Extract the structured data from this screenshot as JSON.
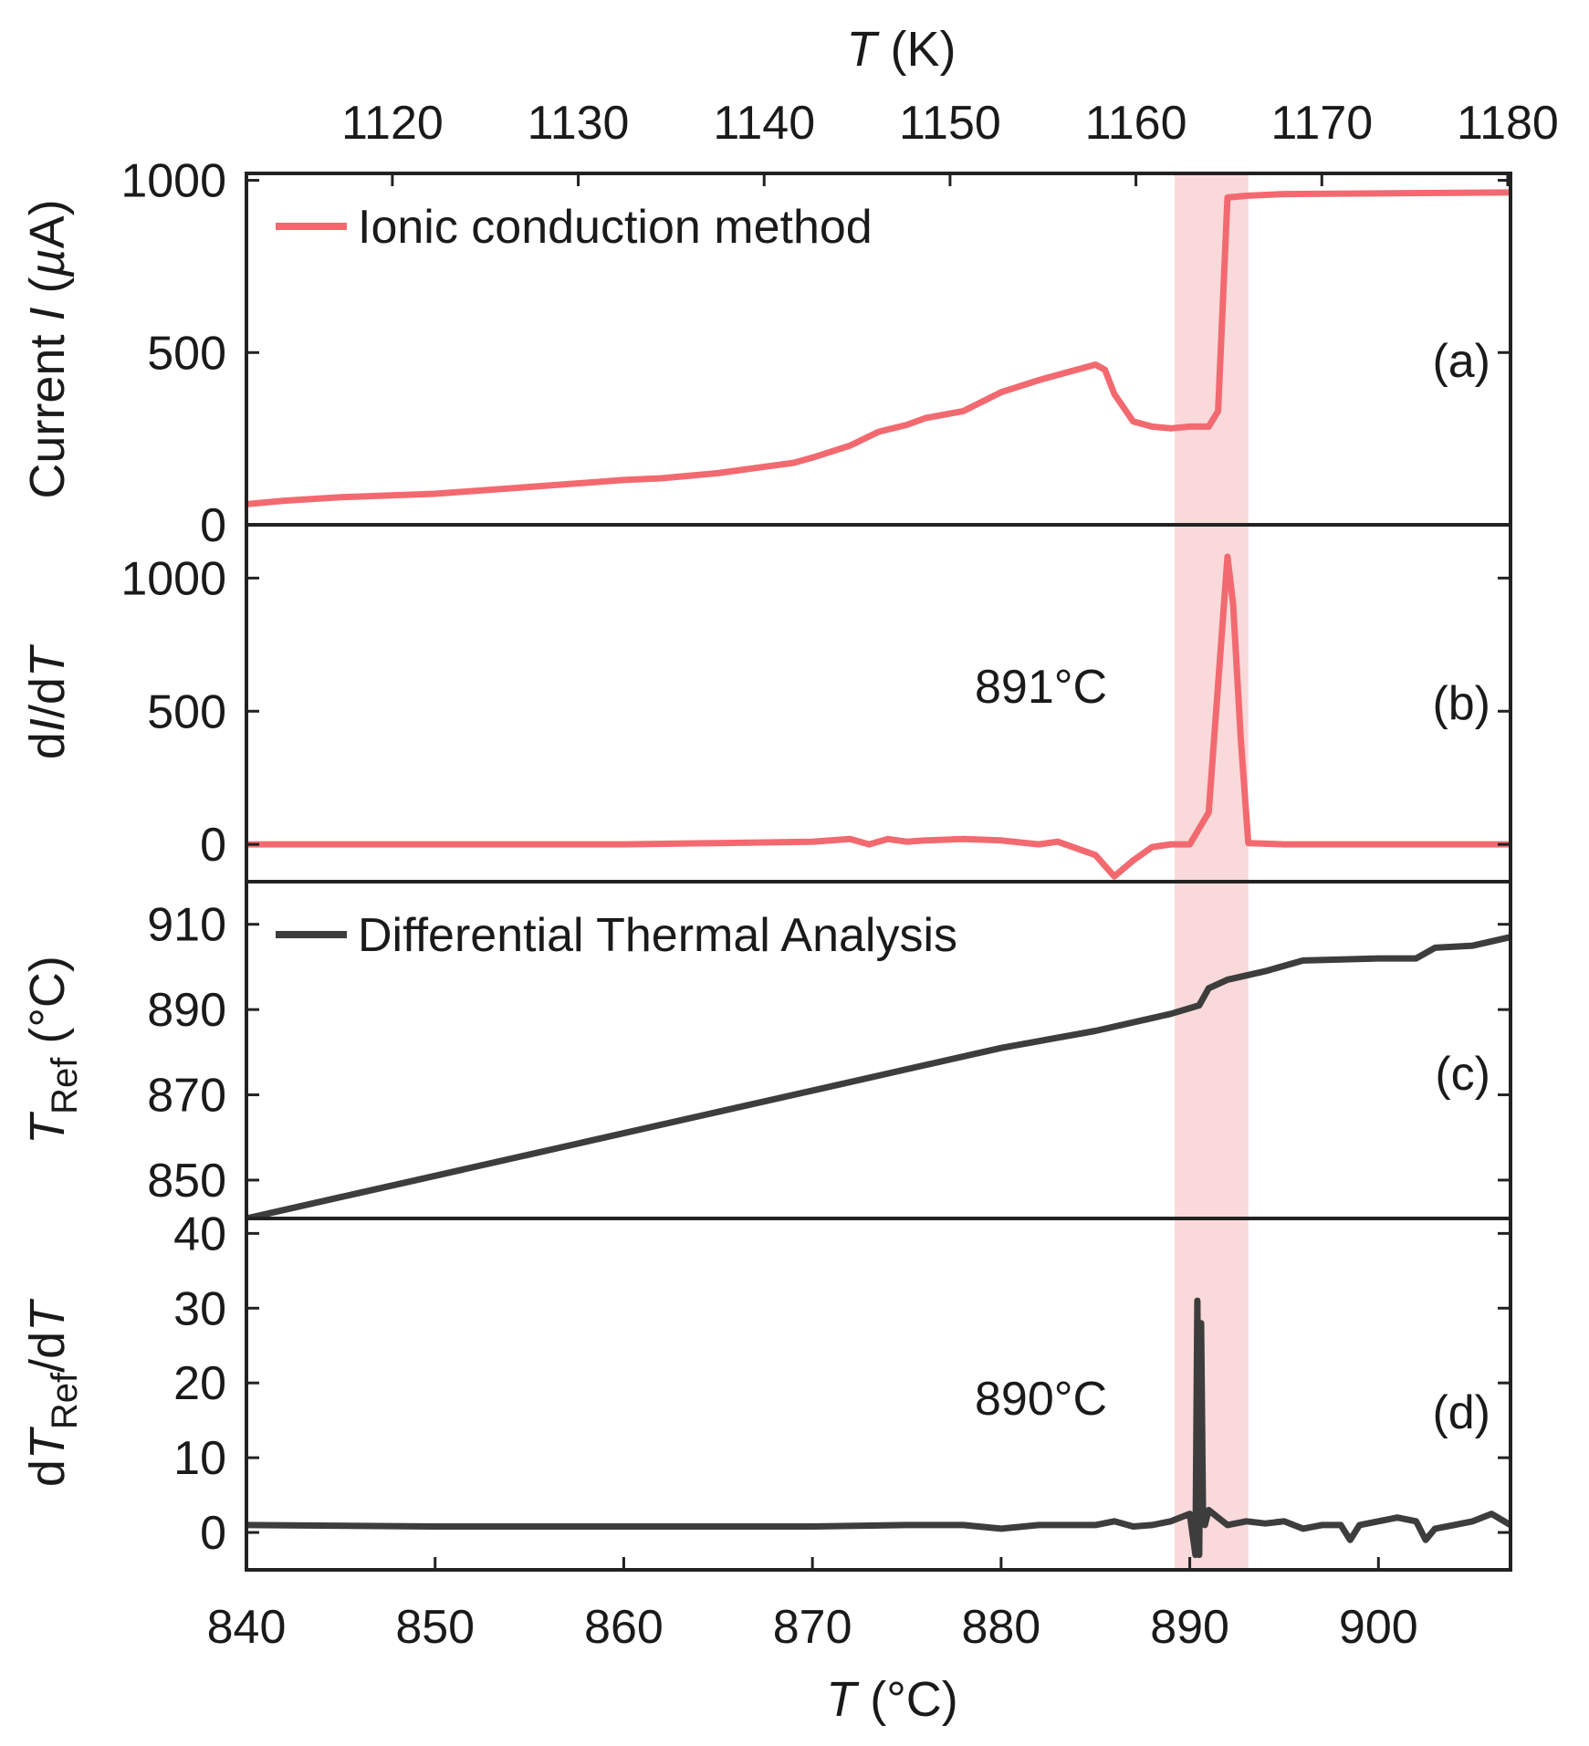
{
  "chart_data": {
    "type": "line",
    "figure": {
      "top_axis": {
        "title_italic": "T",
        "title_rest": " (K)",
        "range": [
          1112.15,
          1180.15
        ],
        "ticks": [
          1120,
          1130,
          1140,
          1150,
          1160,
          1170,
          1180
        ]
      },
      "bottom_axis": {
        "title_italic": "T",
        "title_rest": " (°C)",
        "range": [
          840,
          907
        ],
        "ticks": [
          840,
          850,
          860,
          870,
          880,
          890,
          900
        ]
      },
      "highlight_band": {
        "x0": 889.2,
        "x1": 893.1,
        "color": "#f9d9d9"
      }
    },
    "panels": [
      {
        "id": "a",
        "label": "(a)",
        "color": "#f26a70",
        "ylabel": "Current I (µA)",
        "ylabel_parts": {
          "pre": "Current ",
          "italic": "I",
          "post": " (",
          "greek": "µ",
          "unit": "A)"
        },
        "ylim": [
          0,
          1020
        ],
        "ticks": [
          0,
          500,
          1000
        ],
        "legend": "Ionic conduction method",
        "series": {
          "x": [
            840,
            842,
            845,
            850,
            855,
            860,
            862,
            865,
            867,
            869,
            870,
            872,
            873.5,
            875,
            876,
            878,
            880,
            882,
            884,
            885,
            885.5,
            886,
            887,
            888,
            889,
            890,
            891,
            891.5,
            892,
            893,
            895,
            900,
            907
          ],
          "y": [
            60,
            70,
            80,
            90,
            110,
            130,
            135,
            150,
            165,
            180,
            195,
            230,
            270,
            290,
            310,
            330,
            385,
            420,
            450,
            465,
            450,
            380,
            300,
            285,
            280,
            285,
            285,
            330,
            950,
            955,
            960,
            962,
            965
          ]
        }
      },
      {
        "id": "b",
        "label": "(b)",
        "color": "#f26a70",
        "ylabel": "dI/dT",
        "ylabel_parts": {
          "pre": "d",
          "italic": "I",
          "post": "/d",
          "italic2": "T"
        },
        "ylim": [
          -140,
          1200
        ],
        "ticks": [
          0,
          500,
          1000
        ],
        "annotation": "891°C",
        "series": {
          "x": [
            840,
            850,
            860,
            865,
            870,
            872,
            873,
            874,
            875,
            876,
            878,
            880,
            882,
            883,
            885,
            886,
            887,
            888,
            889,
            890,
            891,
            891.5,
            892,
            892.3,
            892.7,
            893.1,
            895,
            900,
            907
          ],
          "y": [
            0,
            0,
            0,
            5,
            10,
            20,
            0,
            20,
            10,
            15,
            20,
            15,
            0,
            10,
            -40,
            -120,
            -60,
            -10,
            0,
            0,
            120,
            600,
            1080,
            900,
            400,
            5,
            0,
            0,
            0
          ]
        }
      },
      {
        "id": "c",
        "label": "(c)",
        "color": "#3d3d3d",
        "ylabel": "T_Ref (°C)",
        "ylabel_parts": {
          "italic": "T",
          "sub": "Ref",
          "post": " (°C)"
        },
        "ylim": [
          841,
          920
        ],
        "ticks": [
          850,
          870,
          890,
          910
        ],
        "legend": "Differential Thermal Analysis",
        "series": {
          "x": [
            840,
            845,
            850,
            855,
            860,
            865,
            870,
            875,
            880,
            885,
            889,
            890.5,
            891,
            892,
            894,
            896,
            900,
            902,
            903,
            905,
            907
          ],
          "y": [
            841,
            846,
            851,
            856,
            861,
            866,
            871,
            876,
            881,
            885,
            889,
            891,
            895,
            897,
            899,
            901.5,
            902,
            902,
            904.5,
            905,
            907
          ]
        }
      },
      {
        "id": "d",
        "label": "(d)",
        "color": "#3d3d3d",
        "ylabel": "dT_Ref/dT",
        "ylabel_parts": {
          "pre": "d",
          "italic": "T",
          "sub": "Ref",
          "post": "/d",
          "italic2": "T"
        },
        "ylim": [
          -5,
          42
        ],
        "ticks": [
          0,
          10,
          20,
          30,
          40
        ],
        "annotation": "890°C",
        "series": {
          "x": [
            840,
            850,
            860,
            870,
            875,
            878,
            880,
            882,
            885,
            886,
            887,
            888,
            889,
            890,
            890.3,
            890.4,
            890.5,
            890.6,
            890.7,
            890.8,
            891,
            891.5,
            892,
            893,
            894,
            895,
            896,
            897,
            898,
            898.5,
            899,
            900,
            901,
            902,
            902.5,
            903,
            904,
            905,
            906,
            907
          ],
          "y": [
            1,
            0.8,
            0.8,
            0.8,
            1,
            1,
            0.5,
            1,
            1,
            1.5,
            0.8,
            1,
            1.5,
            2.5,
            -3,
            31,
            -3,
            28,
            2,
            1,
            3,
            2,
            1,
            1.5,
            1.2,
            1.5,
            0.5,
            1,
            1,
            -1,
            1,
            1.5,
            2,
            1.5,
            -1,
            0.5,
            1,
            1.5,
            2.5,
            1
          ]
        }
      }
    ]
  }
}
